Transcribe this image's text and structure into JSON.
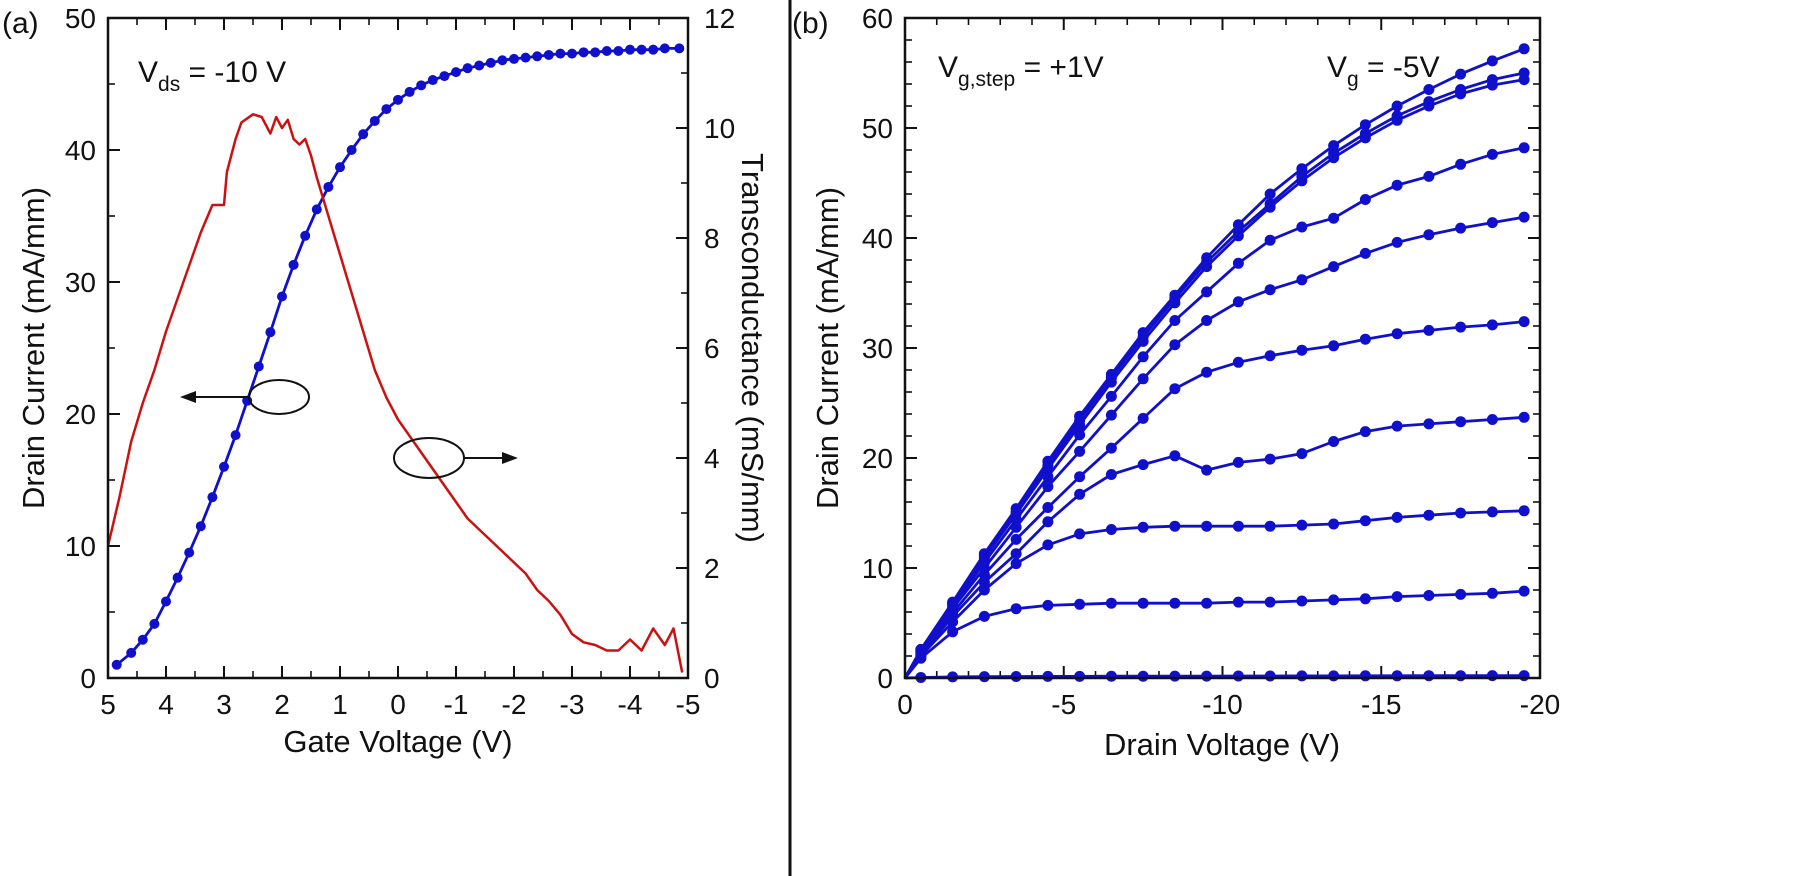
{
  "colors": {
    "blue": "#1010cc",
    "red": "#cc1111",
    "black": "#111111"
  },
  "chart_data": [
    {
      "type": "line",
      "panel_label": "(a)",
      "xlabel": "Gate Voltage (V)",
      "ylabel": "Drain Current (mA/mm)",
      "y2label": "Transconductance (mS/mm)",
      "xlim": [
        5,
        -5
      ],
      "ylim": [
        0,
        50
      ],
      "y2lim": [
        0,
        12
      ],
      "x_ticks": [
        "5",
        "4",
        "3",
        "2",
        "1",
        "0",
        "-1",
        "-2",
        "-3",
        "-4",
        "-5"
      ],
      "y_ticks": [
        "0",
        "10",
        "20",
        "30",
        "40",
        "50"
      ],
      "y2_ticks": [
        "0",
        "2",
        "4",
        "6",
        "8",
        "10",
        "12"
      ],
      "annotation": {
        "main": "V",
        "sub": "ds",
        "rest": " = -10 V"
      },
      "series": [
        {
          "axis": "left",
          "color": "#1010cc",
          "markers": true,
          "x": [
            4.85,
            4.6,
            4.4,
            4.2,
            4.0,
            3.8,
            3.6,
            3.4,
            3.2,
            3.0,
            2.8,
            2.6,
            2.4,
            2.2,
            2.0,
            1.8,
            1.6,
            1.4,
            1.2,
            1.0,
            0.8,
            0.6,
            0.4,
            0.2,
            0.0,
            -0.2,
            -0.4,
            -0.6,
            -0.8,
            -1.0,
            -1.2,
            -1.4,
            -1.6,
            -1.8,
            -2.0,
            -2.2,
            -2.4,
            -2.6,
            -2.8,
            -3.0,
            -3.2,
            -3.4,
            -3.6,
            -3.8,
            -4.0,
            -4.2,
            -4.4,
            -4.6,
            -4.85
          ],
          "y": [
            1.0,
            1.9,
            2.9,
            4.1,
            5.8,
            7.6,
            9.5,
            11.5,
            13.7,
            16.0,
            18.4,
            21.0,
            23.6,
            26.2,
            28.9,
            31.3,
            33.5,
            35.5,
            37.2,
            38.7,
            40.0,
            41.2,
            42.2,
            43.1,
            43.8,
            44.4,
            44.9,
            45.3,
            45.6,
            45.9,
            46.2,
            46.4,
            46.6,
            46.8,
            46.9,
            47.0,
            47.1,
            47.2,
            47.3,
            47.3,
            47.4,
            47.4,
            47.5,
            47.5,
            47.6,
            47.6,
            47.6,
            47.7,
            47.7
          ]
        },
        {
          "axis": "right",
          "color": "#cc1111",
          "markers": false,
          "x": [
            5.0,
            4.8,
            4.6,
            4.4,
            4.2,
            4.0,
            3.8,
            3.6,
            3.4,
            3.2,
            3.0,
            2.95,
            2.8,
            2.7,
            2.5,
            2.35,
            2.2,
            2.1,
            2.0,
            1.9,
            1.8,
            1.7,
            1.6,
            1.5,
            1.4,
            1.2,
            1.0,
            0.8,
            0.6,
            0.4,
            0.2,
            0.0,
            -0.2,
            -0.4,
            -0.6,
            -0.8,
            -1.0,
            -1.2,
            -1.4,
            -1.6,
            -1.8,
            -2.0,
            -2.2,
            -2.4,
            -2.6,
            -2.8,
            -3.0,
            -3.2,
            -3.4,
            -3.6,
            -3.8,
            -4.0,
            -4.2,
            -4.4,
            -4.6,
            -4.75,
            -4.9
          ],
          "y": [
            2.4,
            3.3,
            4.3,
            5.0,
            5.6,
            6.3,
            6.9,
            7.5,
            8.1,
            8.6,
            8.6,
            9.2,
            9.8,
            10.1,
            10.25,
            10.2,
            9.9,
            10.2,
            10.0,
            10.15,
            9.8,
            9.7,
            9.8,
            9.5,
            9.1,
            8.4,
            7.7,
            7.0,
            6.3,
            5.6,
            5.1,
            4.7,
            4.4,
            4.1,
            3.8,
            3.5,
            3.2,
            2.9,
            2.7,
            2.5,
            2.3,
            2.1,
            1.9,
            1.6,
            1.4,
            1.15,
            0.8,
            0.65,
            0.6,
            0.5,
            0.5,
            0.7,
            0.5,
            0.9,
            0.6,
            0.9,
            0.1
          ]
        }
      ]
    },
    {
      "type": "line",
      "panel_label": "(b)",
      "xlabel": "Drain Voltage (V)",
      "ylabel": "Drain Current (mA/mm)",
      "xlim": [
        0,
        -20
      ],
      "ylim": [
        0,
        60
      ],
      "x_ticks": [
        "0",
        "-5",
        "-10",
        "-15",
        "-20"
      ],
      "y_ticks": [
        "0",
        "10",
        "20",
        "30",
        "40",
        "50",
        "60"
      ],
      "annotation_step": {
        "main": "V",
        "sub": "g,step",
        "rest": " = +1V"
      },
      "annotation_vg": {
        "main": "V",
        "sub": "g",
        "rest": " = -5V"
      },
      "x": [
        0.0,
        -0.5,
        -1.5,
        -2.5,
        -3.5,
        -4.5,
        -5.5,
        -6.5,
        -7.5,
        -8.5,
        -9.5,
        -10.5,
        -11.5,
        -12.5,
        -13.5,
        -14.5,
        -15.5,
        -16.5,
        -17.5,
        -18.5,
        -19.5
      ],
      "series": [
        {
          "color": "#1010cc",
          "values": [
            0.0,
            2.6,
            6.9,
            11.3,
            15.4,
            19.7,
            23.8,
            27.6,
            31.4,
            34.8,
            38.2,
            41.2,
            44.0,
            46.3,
            48.4,
            50.3,
            52.0,
            53.5,
            54.9,
            56.1,
            57.2
          ]
        },
        {
          "color": "#1010cc",
          "values": [
            0.0,
            2.5,
            6.8,
            11.1,
            15.1,
            19.3,
            23.4,
            27.3,
            31.0,
            34.5,
            37.8,
            40.6,
            43.1,
            45.6,
            47.7,
            49.5,
            51.1,
            52.4,
            53.5,
            54.4,
            55.0
          ]
        },
        {
          "color": "#1010cc",
          "values": [
            0.0,
            2.5,
            6.7,
            10.9,
            14.9,
            19.0,
            23.0,
            26.9,
            30.6,
            34.1,
            37.4,
            40.2,
            42.8,
            45.2,
            47.3,
            49.1,
            50.7,
            52.0,
            53.1,
            53.9,
            54.4
          ]
        },
        {
          "color": "#1010cc",
          "values": [
            0.0,
            2.4,
            6.5,
            10.5,
            14.4,
            18.3,
            22.1,
            25.6,
            29.2,
            32.5,
            35.1,
            37.7,
            39.8,
            41.0,
            41.8,
            43.5,
            44.8,
            45.6,
            46.7,
            47.6,
            48.2
          ]
        },
        {
          "color": "#1010cc",
          "values": [
            0.0,
            2.3,
            6.3,
            10.0,
            13.7,
            17.4,
            20.6,
            23.9,
            27.2,
            30.3,
            32.5,
            34.2,
            35.3,
            36.2,
            37.4,
            38.6,
            39.6,
            40.3,
            40.9,
            41.4,
            41.9
          ]
        },
        {
          "color": "#1010cc",
          "values": [
            0.0,
            2.2,
            5.9,
            9.4,
            12.6,
            15.5,
            18.3,
            20.9,
            23.6,
            26.3,
            27.8,
            28.7,
            29.3,
            29.8,
            30.2,
            30.8,
            31.3,
            31.6,
            31.9,
            32.1,
            32.4
          ]
        },
        {
          "color": "#1010cc",
          "values": [
            0.0,
            2.1,
            5.6,
            8.7,
            11.3,
            14.2,
            16.7,
            18.5,
            19.4,
            20.2,
            18.9,
            19.6,
            19.9,
            20.4,
            21.5,
            22.4,
            22.9,
            23.1,
            23.3,
            23.5,
            23.7
          ]
        },
        {
          "color": "#1010cc",
          "values": [
            0.0,
            2.0,
            5.1,
            8.0,
            10.4,
            12.1,
            13.1,
            13.5,
            13.7,
            13.8,
            13.8,
            13.8,
            13.8,
            13.9,
            14.0,
            14.3,
            14.6,
            14.8,
            15.0,
            15.1,
            15.2
          ]
        },
        {
          "color": "#1010cc",
          "values": [
            0.0,
            1.8,
            4.2,
            5.6,
            6.3,
            6.6,
            6.7,
            6.8,
            6.8,
            6.8,
            6.8,
            6.9,
            6.9,
            7.0,
            7.1,
            7.2,
            7.4,
            7.5,
            7.6,
            7.7,
            7.9
          ]
        },
        {
          "color": "#1010cc",
          "values": [
            0.0,
            0.05,
            0.1,
            0.12,
            0.14,
            0.15,
            0.15,
            0.16,
            0.16,
            0.17,
            0.17,
            0.18,
            0.18,
            0.19,
            0.19,
            0.2,
            0.2,
            0.21,
            0.21,
            0.22,
            0.22
          ]
        }
      ]
    }
  ]
}
